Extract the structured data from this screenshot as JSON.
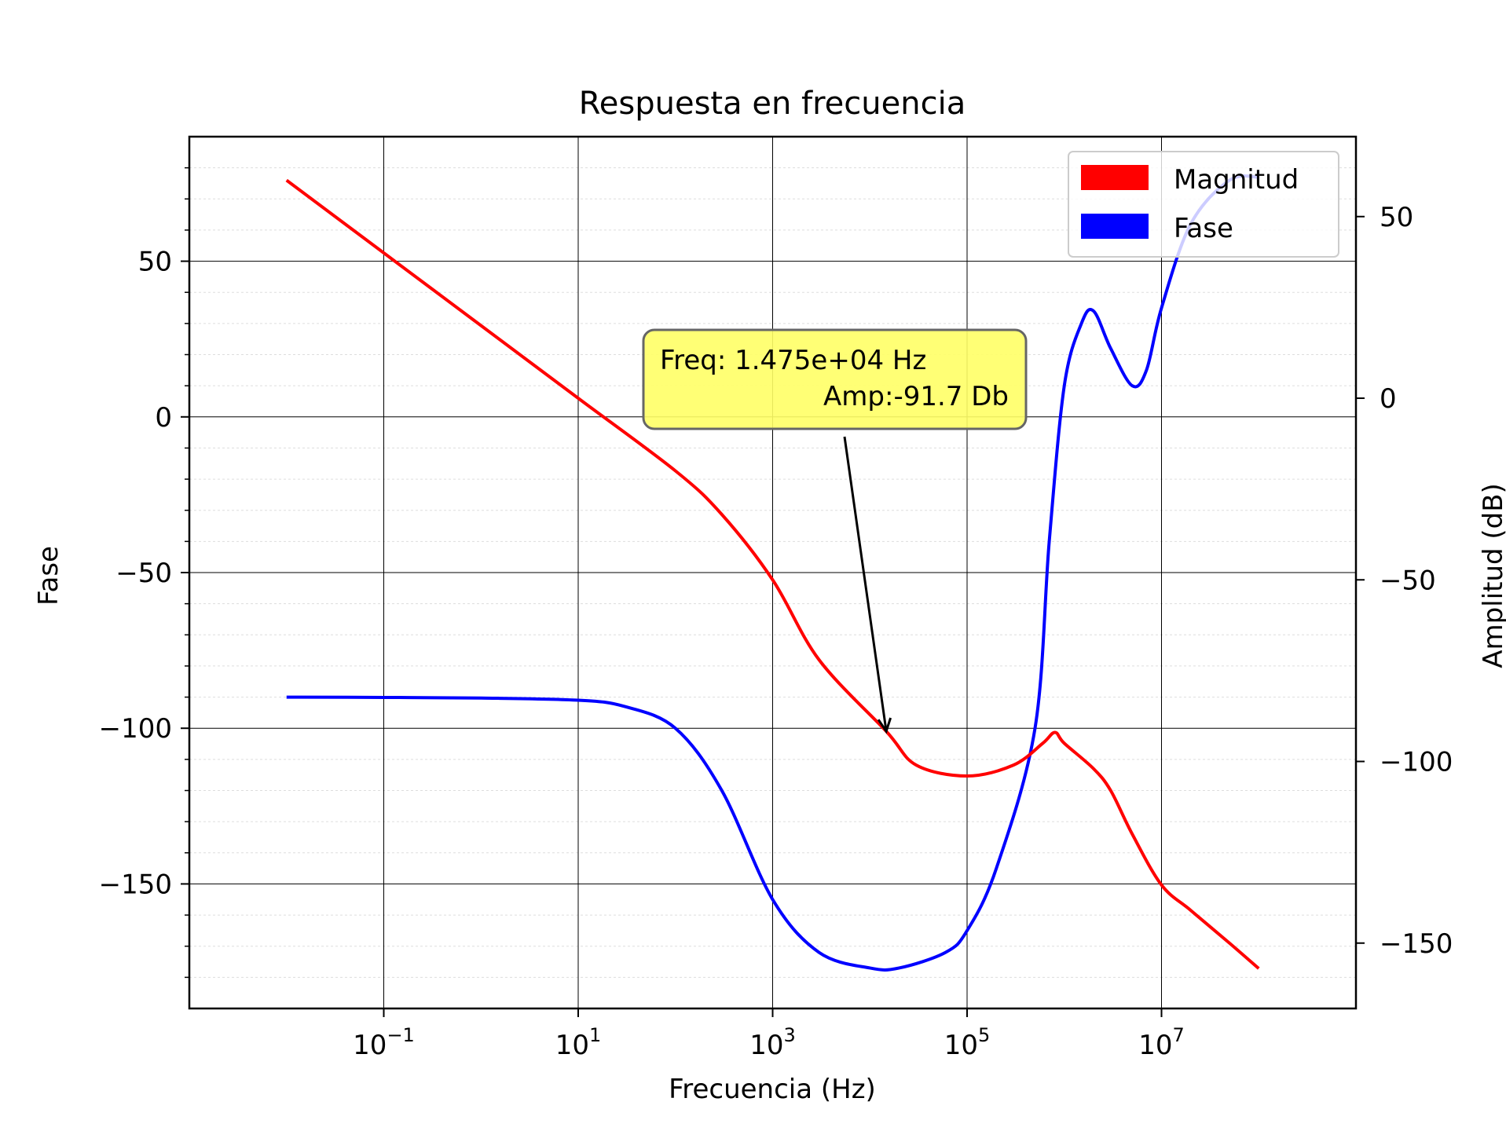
{
  "chart_data": {
    "type": "line",
    "title": "Respuesta en frecuencia",
    "xlabel": "Frecuencia (Hz)",
    "ylabel_left": "Fase",
    "ylabel_right": "Amplitud (dB)",
    "x_scale": "log",
    "xlim": [
      0.001,
      1000000000
    ],
    "ylim_left": [
      -190,
      90
    ],
    "ylim_right": [
      -168,
      72
    ],
    "grid": true,
    "legend_position": "top-right",
    "x_ticks": [
      {
        "base": "10",
        "exp": "−1",
        "value": 0.1
      },
      {
        "base": "10",
        "exp": "1",
        "value": 10
      },
      {
        "base": "10",
        "exp": "3",
        "value": 1000
      },
      {
        "base": "10",
        "exp": "5",
        "value": 100000
      },
      {
        "base": "10",
        "exp": "7",
        "value": 10000000
      }
    ],
    "y_ticks_left": [
      {
        "label": "50",
        "value": 50
      },
      {
        "label": "0",
        "value": 0
      },
      {
        "label": "−50",
        "value": -50
      },
      {
        "label": "−100",
        "value": -100
      },
      {
        "label": "−150",
        "value": -150
      }
    ],
    "y_ticks_right": [
      {
        "label": "50",
        "value": 50
      },
      {
        "label": "0",
        "value": 0
      },
      {
        "label": "−50",
        "value": -50
      },
      {
        "label": "−100",
        "value": -100
      },
      {
        "label": "−150",
        "value": -150
      }
    ],
    "series": [
      {
        "name": "Magnitud",
        "axis": "right",
        "color": "#ff0000",
        "x": [
          0.01,
          0.1,
          1,
          10,
          100,
          300,
          1000,
          3000,
          14750,
          30000,
          100000,
          300000,
          600000,
          800000,
          1000000,
          2000000,
          3000000,
          5000000,
          10000000,
          20000000,
          50000000,
          100000000
        ],
        "y": [
          60,
          40,
          20,
          0,
          -20,
          -32,
          -50,
          -72,
          -91.7,
          -101,
          -104,
          -101,
          -95,
          -92,
          -95,
          -102,
          -108,
          -120,
          -134,
          -141,
          -150,
          -157
        ]
      },
      {
        "name": "Fase",
        "axis": "left",
        "color": "#0000ff",
        "x": [
          0.01,
          0.1,
          1,
          10,
          30,
          100,
          300,
          1000,
          3000,
          10000,
          20000,
          60000,
          100000,
          200000,
          500000,
          700000,
          1000000,
          1500000,
          2000000,
          3000000,
          5000000,
          7000000,
          10000000,
          20000000,
          50000000,
          100000000
        ],
        "y": [
          -90,
          -90.1,
          -90.3,
          -91,
          -93,
          -100,
          -120,
          -155,
          -172,
          -177,
          -177,
          -172,
          -165,
          -145,
          -100,
          -40,
          10,
          30,
          34,
          22,
          10,
          15,
          35,
          62,
          76,
          77
        ]
      }
    ],
    "annotation": {
      "line1": "Freq: 1.475e+04  Hz",
      "line2": "Amp:-91.7 Db",
      "x": 14750,
      "y_right": -91.7,
      "box_color": "#ffff66"
    }
  }
}
